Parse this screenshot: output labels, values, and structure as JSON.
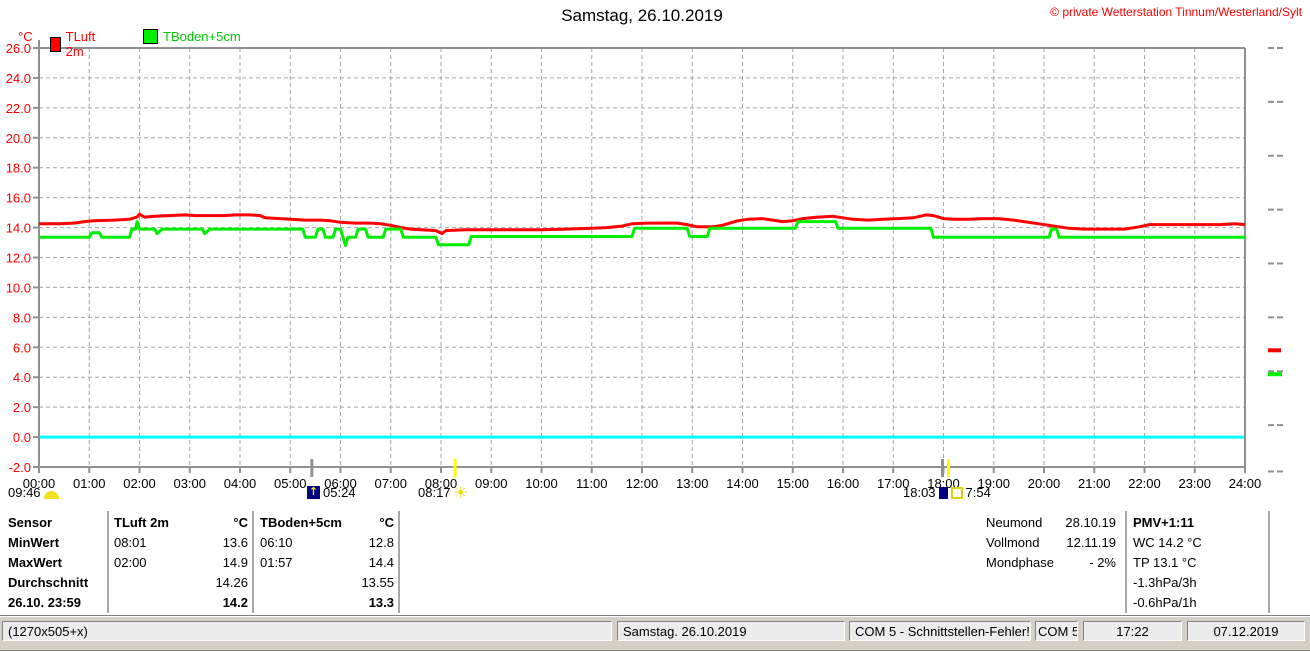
{
  "header": {
    "title": "Samstag, 26.10.2019",
    "copyright": "© private Wetterstation Tinnum/Westerland/Sylt"
  },
  "legend": {
    "unit": "°C",
    "items": [
      {
        "label": "TLuft 2m",
        "color": "#ff0000"
      },
      {
        "label": "TBoden+5cm",
        "color": "#00dd00"
      }
    ]
  },
  "chart_data": {
    "type": "line",
    "title": "Samstag, 26.10.2019",
    "ylabel": "°C",
    "ylim": [
      -2,
      26
    ],
    "ytick_step": 2,
    "xlim_hours": [
      0,
      24
    ],
    "xtick_label_format": "HH:00",
    "grid": true,
    "zero_line": {
      "value": 0.0,
      "color": "#00ffff"
    },
    "frame_color": "#909090",
    "series": [
      {
        "name": "TLuft 2m",
        "color": "#ff0000",
        "points": [
          [
            0,
            14.25
          ],
          [
            0.4,
            14.25
          ],
          [
            0.7,
            14.3
          ],
          [
            0.9,
            14.4
          ],
          [
            1.1,
            14.45
          ],
          [
            1.5,
            14.5
          ],
          [
            1.8,
            14.55
          ],
          [
            1.95,
            14.7
          ],
          [
            2,
            14.9
          ],
          [
            2.1,
            14.7
          ],
          [
            2.3,
            14.75
          ],
          [
            2.6,
            14.8
          ],
          [
            2.9,
            14.85
          ],
          [
            3.1,
            14.8
          ],
          [
            3.4,
            14.8
          ],
          [
            3.7,
            14.8
          ],
          [
            3.9,
            14.85
          ],
          [
            4.2,
            14.85
          ],
          [
            4.4,
            14.8
          ],
          [
            4.5,
            14.65
          ],
          [
            4.8,
            14.6
          ],
          [
            5,
            14.55
          ],
          [
            5.3,
            14.5
          ],
          [
            5.6,
            14.5
          ],
          [
            5.8,
            14.45
          ],
          [
            6,
            14.35
          ],
          [
            6.3,
            14.3
          ],
          [
            6.6,
            14.3
          ],
          [
            6.8,
            14.25
          ],
          [
            7,
            14.15
          ],
          [
            7.2,
            14
          ],
          [
            7.4,
            13.9
          ],
          [
            7.6,
            13.85
          ],
          [
            7.9,
            13.8
          ],
          [
            8.02,
            13.6
          ],
          [
            8.1,
            13.8
          ],
          [
            8.5,
            13.85
          ],
          [
            9,
            13.85
          ],
          [
            9.5,
            13.85
          ],
          [
            10,
            13.85
          ],
          [
            10.5,
            13.9
          ],
          [
            11,
            13.95
          ],
          [
            11.3,
            14
          ],
          [
            11.6,
            14.1
          ],
          [
            11.8,
            14.25
          ],
          [
            12.1,
            14.3
          ],
          [
            12.4,
            14.3
          ],
          [
            12.7,
            14.3
          ],
          [
            12.9,
            14.2
          ],
          [
            13.1,
            14.05
          ],
          [
            13.4,
            14.05
          ],
          [
            13.6,
            14.15
          ],
          [
            13.9,
            14.45
          ],
          [
            14.1,
            14.55
          ],
          [
            14.4,
            14.6
          ],
          [
            14.6,
            14.5
          ],
          [
            14.8,
            14.4
          ],
          [
            15,
            14.45
          ],
          [
            15.2,
            14.6
          ],
          [
            15.5,
            14.7
          ],
          [
            15.8,
            14.75
          ],
          [
            16,
            14.65
          ],
          [
            16.2,
            14.55
          ],
          [
            16.5,
            14.5
          ],
          [
            16.8,
            14.55
          ],
          [
            17.1,
            14.6
          ],
          [
            17.4,
            14.65
          ],
          [
            17.65,
            14.85
          ],
          [
            17.8,
            14.8
          ],
          [
            18,
            14.6
          ],
          [
            18.2,
            14.55
          ],
          [
            18.5,
            14.55
          ],
          [
            18.8,
            14.6
          ],
          [
            19.1,
            14.6
          ],
          [
            19.4,
            14.5
          ],
          [
            19.6,
            14.4
          ],
          [
            19.9,
            14.25
          ],
          [
            20.2,
            14.1
          ],
          [
            20.5,
            13.95
          ],
          [
            20.8,
            13.9
          ],
          [
            21.2,
            13.9
          ],
          [
            21.6,
            13.9
          ],
          [
            21.9,
            14.05
          ],
          [
            22.1,
            14.2
          ],
          [
            22.5,
            14.2
          ],
          [
            23,
            14.2
          ],
          [
            23.5,
            14.2
          ],
          [
            23.8,
            14.25
          ],
          [
            24,
            14.2
          ]
        ]
      },
      {
        "name": "TBoden+5cm",
        "color": "#00ee00",
        "points": [
          [
            0,
            13.35
          ],
          [
            1,
            13.35
          ],
          [
            1.05,
            13.65
          ],
          [
            1.2,
            13.65
          ],
          [
            1.25,
            13.35
          ],
          [
            1.8,
            13.35
          ],
          [
            1.85,
            13.9
          ],
          [
            1.92,
            13.9
          ],
          [
            1.95,
            14.4
          ],
          [
            2,
            13.9
          ],
          [
            2.3,
            13.9
          ],
          [
            2.35,
            13.6
          ],
          [
            2.45,
            13.9
          ],
          [
            3.25,
            13.9
          ],
          [
            3.3,
            13.6
          ],
          [
            3.4,
            13.9
          ],
          [
            5.25,
            13.9
          ],
          [
            5.3,
            13.35
          ],
          [
            5.5,
            13.35
          ],
          [
            5.55,
            13.9
          ],
          [
            5.65,
            13.9
          ],
          [
            5.7,
            13.35
          ],
          [
            5.85,
            13.35
          ],
          [
            5.9,
            13.9
          ],
          [
            6,
            13.9
          ],
          [
            6.05,
            13.35
          ],
          [
            6.1,
            12.8
          ],
          [
            6.15,
            13.35
          ],
          [
            6.3,
            13.35
          ],
          [
            6.35,
            13.9
          ],
          [
            6.5,
            13.9
          ],
          [
            6.55,
            13.35
          ],
          [
            6.85,
            13.35
          ],
          [
            6.9,
            13.9
          ],
          [
            7.2,
            13.9
          ],
          [
            7.25,
            13.35
          ],
          [
            7.9,
            13.35
          ],
          [
            7.95,
            12.85
          ],
          [
            8.55,
            12.85
          ],
          [
            8.6,
            13.4
          ],
          [
            11.8,
            13.4
          ],
          [
            11.85,
            13.95
          ],
          [
            12.9,
            13.95
          ],
          [
            12.95,
            13.4
          ],
          [
            13.3,
            13.4
          ],
          [
            13.35,
            13.95
          ],
          [
            15.05,
            13.95
          ],
          [
            15.1,
            14.4
          ],
          [
            15.85,
            14.4
          ],
          [
            15.9,
            13.95
          ],
          [
            17.75,
            13.95
          ],
          [
            17.8,
            13.35
          ],
          [
            20.1,
            13.35
          ],
          [
            20.15,
            13.9
          ],
          [
            20.25,
            13.9
          ],
          [
            20.3,
            13.35
          ],
          [
            24,
            13.35
          ]
        ]
      }
    ],
    "axis_marks": [
      {
        "hour": 5.43,
        "color": "#909090"
      },
      {
        "hour": 8.28,
        "color": "#ffff00"
      },
      {
        "hour": 17.98,
        "color": "#909090"
      },
      {
        "hour": 18.1,
        "color": "#ffff00"
      }
    ],
    "right_marks": {
      "gray_deg": [
        26,
        22.4,
        18.8,
        15.2,
        11.6,
        8,
        4.4,
        0.8,
        -2.3
      ],
      "red_deg": 5.8,
      "green_deg": 4.2
    }
  },
  "sun_moon": {
    "items": [
      {
        "time": "09:46",
        "icon": "moonset"
      },
      {
        "time": "05:24",
        "icon": "moonrise"
      },
      {
        "time": "08:17",
        "icon": "sunrise"
      },
      {
        "time": "18:03",
        "icon": "sunset"
      },
      {
        "time": "7:54",
        "icon": "sunshine-duration"
      }
    ]
  },
  "summary_table": {
    "row_labels": [
      "Sensor",
      "MinWert",
      "MaxWert",
      "Durchschnitt",
      "26.10. 23:59"
    ],
    "columns": [
      {
        "header": "TLuft 2m",
        "unit": "°C",
        "rows": [
          [
            "08:01",
            "13.6"
          ],
          [
            "02:00",
            "14.9"
          ],
          [
            "",
            "14.26"
          ],
          [
            "",
            "14.2"
          ]
        ]
      },
      {
        "header": "TBoden+5cm",
        "unit": "°C",
        "rows": [
          [
            "06:10",
            "12.8"
          ],
          [
            "01:57",
            "14.4"
          ],
          [
            "",
            "13.55"
          ],
          [
            "",
            "13.3"
          ]
        ]
      }
    ]
  },
  "moon_info": {
    "rows": [
      [
        "Neumond",
        "28.10.19"
      ],
      [
        "Vollmond",
        "12.11.19"
      ],
      [
        "Mondphase",
        "- 2%"
      ]
    ]
  },
  "pmv_panel": {
    "lines": [
      "PMV+1:11",
      "WC 14.2 °C",
      "TP 13.1 °C",
      "-1.3hPa/3h",
      "-0.6hPa/1h"
    ]
  },
  "status_bar": {
    "panels": [
      "(1270x505+x)",
      "Samstag. 26.10.2019",
      "COM 5 - Schnittstellen-Fehler!",
      "COM 5",
      "17:22",
      "07.12.2019"
    ]
  }
}
